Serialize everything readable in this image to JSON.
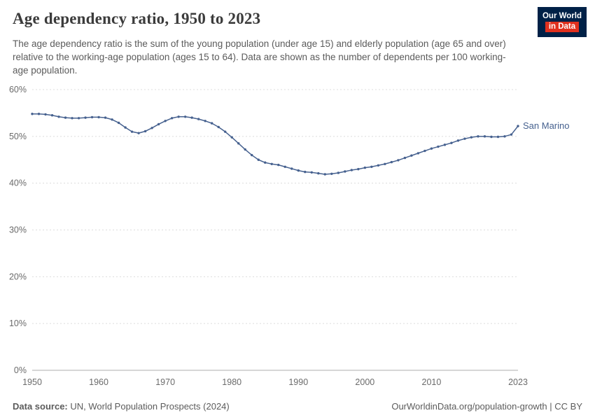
{
  "header": {
    "title": "Age dependency ratio, 1950 to 2023",
    "subtitle": "The age dependency ratio is the sum of the young population (under age 15) and elderly population (age 65 and over) relative to the working-age population (ages 15 to 64). Data are shown as the number of dependents per 100 working-age population.",
    "logo": {
      "line1": "Our World",
      "line2": "in Data",
      "bg_color": "#002147",
      "accent_color": "#e0301e"
    }
  },
  "footer": {
    "source_label": "Data source:",
    "source_text": " UN, World Population Prospects (2024)",
    "right_text": "OurWorldinData.org/population-growth | CC BY"
  },
  "chart_data": {
    "type": "line",
    "title": "Age dependency ratio, 1950 to 2023",
    "ylabel": "",
    "xlabel": "",
    "y_format": "percent",
    "ylim": [
      0,
      60
    ],
    "xlim": [
      1950,
      2023
    ],
    "y_ticks": [
      0,
      10,
      20,
      30,
      40,
      50,
      60
    ],
    "x_ticks": [
      1950,
      1960,
      1970,
      1980,
      1990,
      2000,
      2010,
      2023
    ],
    "grid": "horizontal-dashed",
    "legend_position": "end-of-line-label",
    "series": [
      {
        "name": "San Marino",
        "color": "#46618f",
        "x": [
          1950,
          1951,
          1952,
          1953,
          1954,
          1955,
          1956,
          1957,
          1958,
          1959,
          1960,
          1961,
          1962,
          1963,
          1964,
          1965,
          1966,
          1967,
          1968,
          1969,
          1970,
          1971,
          1972,
          1973,
          1974,
          1975,
          1976,
          1977,
          1978,
          1979,
          1980,
          1981,
          1982,
          1983,
          1984,
          1985,
          1986,
          1987,
          1988,
          1989,
          1990,
          1991,
          1992,
          1993,
          1994,
          1995,
          1996,
          1997,
          1998,
          1999,
          2000,
          2001,
          2002,
          2003,
          2004,
          2005,
          2006,
          2007,
          2008,
          2009,
          2010,
          2011,
          2012,
          2013,
          2014,
          2015,
          2016,
          2017,
          2018,
          2019,
          2020,
          2021,
          2022,
          2023
        ],
        "values": [
          54.8,
          54.8,
          54.7,
          54.5,
          54.2,
          54.0,
          53.9,
          53.9,
          54.0,
          54.1,
          54.1,
          54.0,
          53.6,
          52.9,
          51.9,
          51.0,
          50.7,
          51.1,
          51.8,
          52.6,
          53.3,
          53.9,
          54.2,
          54.2,
          54.0,
          53.7,
          53.3,
          52.8,
          52.0,
          51.0,
          49.8,
          48.5,
          47.2,
          46.0,
          45.0,
          44.4,
          44.1,
          43.9,
          43.5,
          43.1,
          42.7,
          42.4,
          42.3,
          42.1,
          41.9,
          42.0,
          42.2,
          42.5,
          42.8,
          43.0,
          43.3,
          43.5,
          43.8,
          44.1,
          44.5,
          44.9,
          45.4,
          45.9,
          46.4,
          46.9,
          47.4,
          47.8,
          48.2,
          48.6,
          49.1,
          49.5,
          49.8,
          50.0,
          50.0,
          49.9,
          49.9,
          50.0,
          50.4,
          52.2
        ]
      }
    ]
  }
}
